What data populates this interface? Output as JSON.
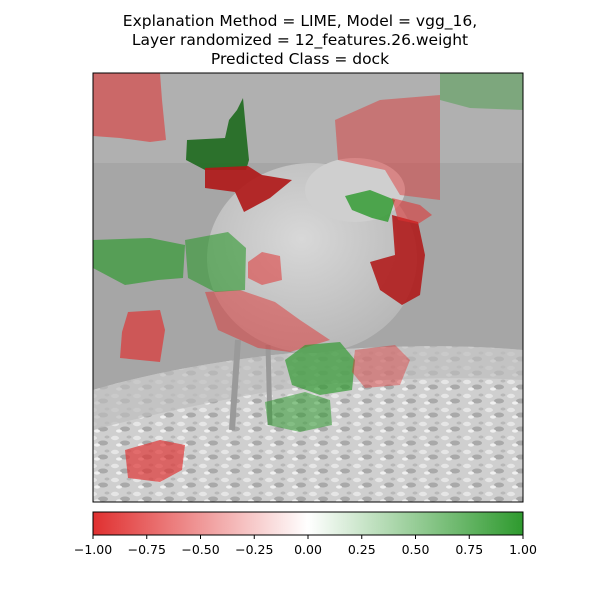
{
  "title_lines": [
    "Explanation Method = LIME, Model = vgg_16,",
    "Layer randomized = 12_features.26.weight",
    "Predicted Class = dock"
  ],
  "colorbar": {
    "min": -1.0,
    "max": 1.0,
    "ticks": [
      -1.0,
      -0.75,
      -0.5,
      -0.25,
      0.0,
      0.25,
      0.5,
      0.75,
      1.0
    ],
    "tick_labels": [
      "−1.00",
      "−0.75",
      "−0.50",
      "−0.25",
      "0.00",
      "0.25",
      "0.50",
      "0.75",
      "1.00"
    ],
    "negative_color": "#e03030",
    "neutral_color": "#ffffff",
    "positive_color": "#2e9a2e"
  },
  "segments": [
    {
      "name": "seg-top-left-red",
      "value": -0.45
    },
    {
      "name": "seg-top-center-green",
      "value": 0.95
    },
    {
      "name": "seg-top-center-red",
      "value": -0.95
    },
    {
      "name": "seg-right-top-red",
      "value": -0.3
    },
    {
      "name": "seg-right-mid-red",
      "value": -0.9
    },
    {
      "name": "seg-right-green-small",
      "value": 0.8
    },
    {
      "name": "seg-left-mid-green",
      "value": 0.6
    },
    {
      "name": "seg-left-mid-red",
      "value": -0.4
    },
    {
      "name": "seg-left-lower-red",
      "value": -0.6
    },
    {
      "name": "seg-bird-belly-red",
      "value": -0.35
    },
    {
      "name": "seg-bird-center-red",
      "value": -0.45
    },
    {
      "name": "seg-bird-lower-green",
      "value": 0.5
    },
    {
      "name": "seg-center-green",
      "value": 0.6
    },
    {
      "name": "seg-bottom-left-red",
      "value": -0.6
    },
    {
      "name": "seg-bottom-right-green",
      "value": 0.4
    },
    {
      "name": "seg-top-right-green",
      "value": 0.2
    },
    {
      "name": "seg-bottom-mid-red",
      "value": -0.25
    }
  ]
}
